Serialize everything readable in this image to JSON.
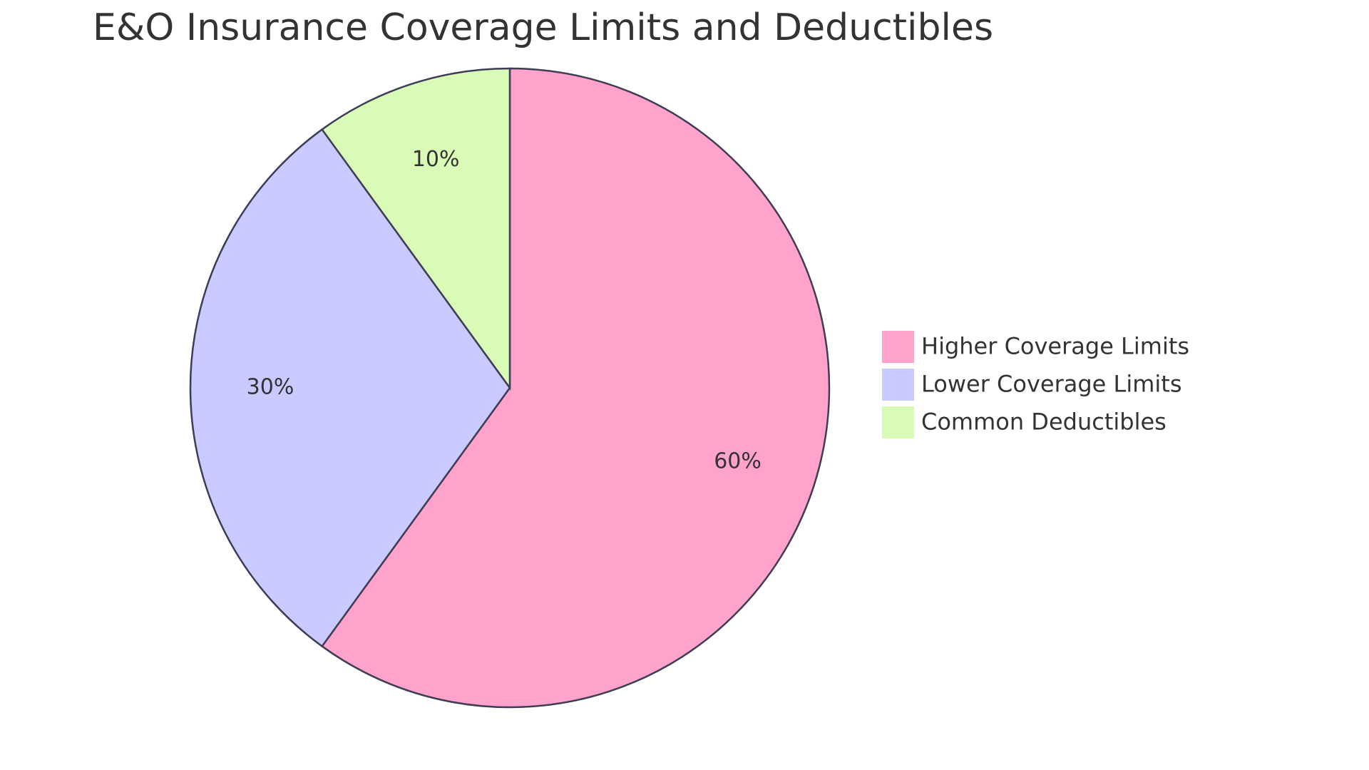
{
  "chart_data": {
    "type": "pie",
    "title": "E&O Insurance Coverage Limits and Deductibles",
    "categories": [
      "Higher Coverage Limits",
      "Lower Coverage Limits",
      "Common Deductibles"
    ],
    "values": [
      60,
      30,
      10
    ],
    "value_labels": [
      "60%",
      "30%",
      "10%"
    ],
    "colors": [
      "#ffa3cc",
      "#c9caff",
      "#dafab8"
    ],
    "legend": "right"
  }
}
